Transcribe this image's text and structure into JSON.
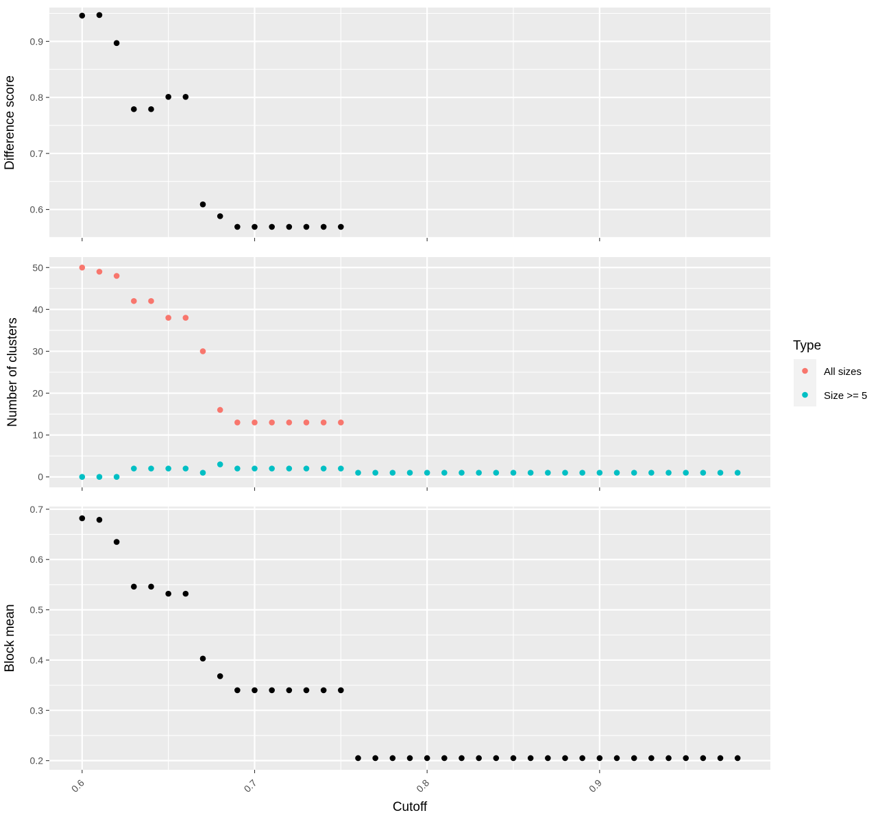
{
  "chart_data": {
    "type": "scatter",
    "x_label": "Cutoff",
    "x_ticks": [
      0.6,
      0.7,
      0.8,
      0.9
    ],
    "x_tick_labels": [
      "0.6",
      "0.7",
      "0.8",
      "0.9"
    ],
    "xlim": [
      0.581,
      0.999
    ],
    "grid": true,
    "background": "#EBEBEB",
    "panels": [
      {
        "id": "difference",
        "ylabel": "Difference score",
        "ylim": [
          0.5493,
          0.9604
        ],
        "y_ticks": [
          0.6,
          0.7,
          0.8,
          0.9
        ],
        "y_tick_labels": [
          "0.6",
          "0.7",
          "0.8",
          "0.9"
        ],
        "series": [
          {
            "color": "#000000",
            "x": [
              0.6,
              0.61,
              0.62,
              0.63,
              0.64,
              0.65,
              0.66,
              0.67,
              0.68,
              0.69,
              0.7,
              0.71,
              0.72,
              0.73,
              0.74,
              0.75
            ],
            "y": [
              0.946,
              0.947,
              0.897,
              0.779,
              0.779,
              0.801,
              0.801,
              0.609,
              0.588,
              0.569,
              0.569,
              0.569,
              0.569,
              0.569,
              0.569,
              0.569
            ]
          }
        ]
      },
      {
        "id": "clusters",
        "ylabel": "Number of clusters",
        "ylim": [
          -2.5,
          52.5
        ],
        "y_ticks": [
          0,
          10,
          20,
          30,
          40,
          50
        ],
        "y_tick_labels": [
          "0",
          "10",
          "20",
          "30",
          "40",
          "50"
        ],
        "series": [
          {
            "name": "All sizes",
            "color": "#F8766D",
            "x": [
              0.6,
              0.61,
              0.62,
              0.63,
              0.64,
              0.65,
              0.66,
              0.67,
              0.68,
              0.69,
              0.7,
              0.71,
              0.72,
              0.73,
              0.74,
              0.75
            ],
            "y": [
              50,
              49,
              48,
              42,
              42,
              38,
              38,
              30,
              16,
              13,
              13,
              13,
              13,
              13,
              13,
              13
            ]
          },
          {
            "name": "Size >= 5",
            "color": "#00BFC4",
            "x": [
              0.6,
              0.61,
              0.62,
              0.63,
              0.64,
              0.65,
              0.66,
              0.67,
              0.68,
              0.69,
              0.7,
              0.71,
              0.72,
              0.73,
              0.74,
              0.75,
              0.76,
              0.77,
              0.78,
              0.79,
              0.8,
              0.81,
              0.82,
              0.83,
              0.84,
              0.85,
              0.86,
              0.87,
              0.88,
              0.89,
              0.9,
              0.91,
              0.92,
              0.93,
              0.94,
              0.95,
              0.96,
              0.97,
              0.98
            ],
            "y": [
              0,
              0,
              0,
              2,
              2,
              2,
              2,
              1,
              3,
              2,
              2,
              2,
              2,
              2,
              2,
              2,
              1,
              1,
              1,
              1,
              1,
              1,
              1,
              1,
              1,
              1,
              1,
              1,
              1,
              1,
              1,
              1,
              1,
              1,
              1,
              1,
              1,
              1,
              1
            ]
          }
        ]
      },
      {
        "id": "block",
        "ylabel": "Block mean",
        "ylim": [
          0.1818,
          0.7053
        ],
        "y_ticks": [
          0.2,
          0.3,
          0.4,
          0.5,
          0.6,
          0.7
        ],
        "y_tick_labels": [
          "0.2",
          "0.3",
          "0.4",
          "0.5",
          "0.6",
          "0.7"
        ],
        "series": [
          {
            "color": "#000000",
            "x": [
              0.6,
              0.61,
              0.62,
              0.63,
              0.64,
              0.65,
              0.66,
              0.67,
              0.68,
              0.69,
              0.7,
              0.71,
              0.72,
              0.73,
              0.74,
              0.75,
              0.76,
              0.77,
              0.78,
              0.79,
              0.8,
              0.81,
              0.82,
              0.83,
              0.84,
              0.85,
              0.86,
              0.87,
              0.88,
              0.89,
              0.9,
              0.91,
              0.92,
              0.93,
              0.94,
              0.95,
              0.96,
              0.97,
              0.98
            ],
            "y": [
              0.682,
              0.679,
              0.635,
              0.546,
              0.546,
              0.532,
              0.532,
              0.403,
              0.368,
              0.34,
              0.34,
              0.34,
              0.34,
              0.34,
              0.34,
              0.34,
              0.205,
              0.205,
              0.205,
              0.205,
              0.205,
              0.205,
              0.205,
              0.205,
              0.205,
              0.205,
              0.205,
              0.205,
              0.205,
              0.205,
              0.205,
              0.205,
              0.205,
              0.205,
              0.205,
              0.205,
              0.205,
              0.205,
              0.205
            ]
          }
        ]
      }
    ],
    "legend": {
      "title": "Type",
      "position": "right",
      "panel_bg": "#F2F2F2",
      "items": [
        {
          "label": "All sizes",
          "color": "#F8766D"
        },
        {
          "label": "Size >= 5",
          "color": "#00BFC4"
        }
      ]
    }
  }
}
